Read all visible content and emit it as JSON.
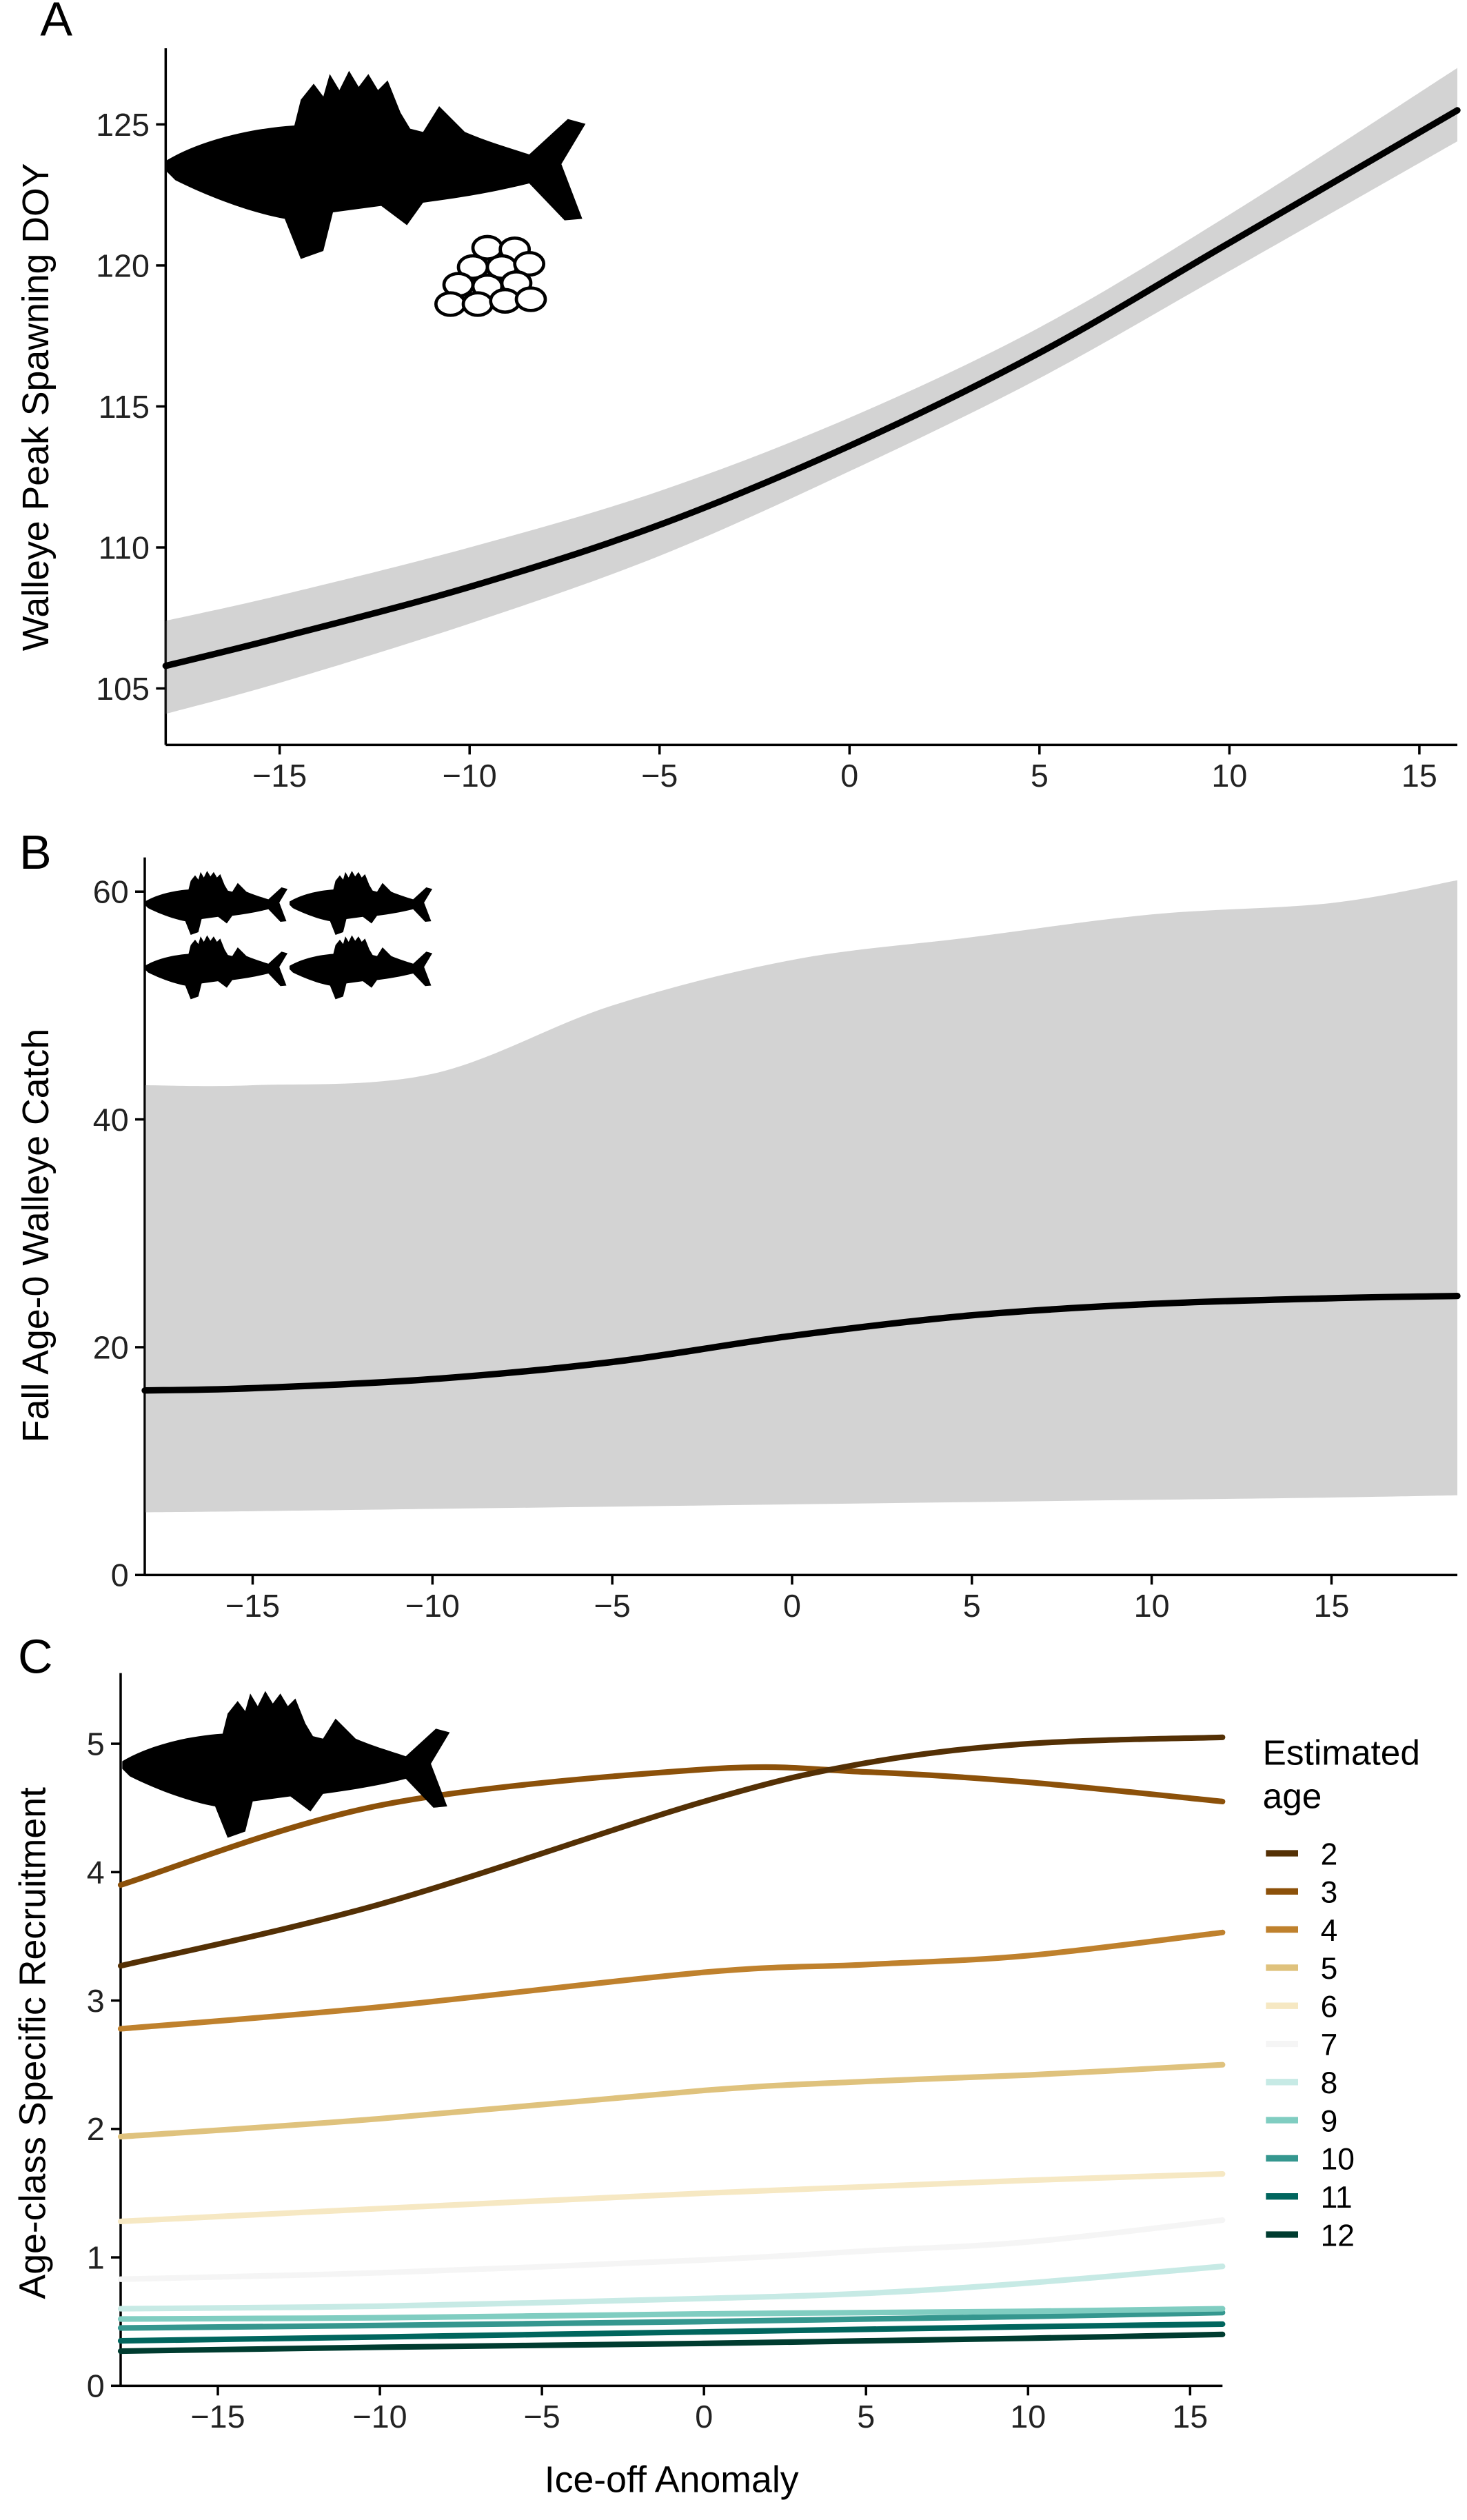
{
  "chart_data": [
    {
      "type": "line",
      "panel_label": "A",
      "y_label": "Walleye Peak Spawning DOY",
      "x": [
        -18,
        -15,
        -10,
        -5,
        0,
        5,
        10,
        16
      ],
      "values": [
        105.8,
        106.8,
        108.6,
        110.8,
        113.6,
        116.9,
        120.8,
        125.5
      ],
      "lower": [
        104.1,
        105.2,
        107.3,
        109.7,
        112.7,
        116.0,
        119.8,
        124.4
      ],
      "upper": [
        107.4,
        108.3,
        110.0,
        112.0,
        114.6,
        117.8,
        121.8,
        127.0
      ],
      "color": "#000000",
      "band_color": "#808080",
      "xlim": [
        -18,
        16
      ],
      "ylim": [
        103,
        127.7
      ],
      "xticks": [
        {
          "value": -15,
          "label": "−15"
        },
        {
          "value": -10,
          "label": "−10"
        },
        {
          "value": -5,
          "label": "−5"
        },
        0,
        5,
        10,
        15
      ],
      "yticks": [
        105,
        110,
        115,
        120,
        125
      ]
    },
    {
      "type": "line",
      "panel_label": "B",
      "y_label": "Fall Age-0 Walleye Catch",
      "x": [
        -18,
        -15,
        -10,
        -5,
        0,
        5,
        10,
        15,
        18.5
      ],
      "values": [
        16.2,
        16.4,
        17.2,
        18.7,
        21,
        22.8,
        23.8,
        24.3,
        24.5
      ],
      "lower": [
        5.5,
        5.6,
        5.8,
        6,
        6.2,
        6.4,
        6.6,
        6.8,
        7
      ],
      "upper": [
        43,
        43,
        44,
        50,
        54,
        56,
        58,
        59,
        61
      ],
      "color": "#000000",
      "band_color": "#808080",
      "xlim": [
        -18,
        18.5
      ],
      "ylim": [
        0,
        63
      ],
      "xticks": [
        {
          "value": -15,
          "label": "−15"
        },
        {
          "value": -10,
          "label": "−10"
        },
        {
          "value": -5,
          "label": "−5"
        },
        0,
        5,
        10,
        15
      ],
      "yticks": [
        0,
        20,
        40,
        60
      ]
    },
    {
      "type": "line",
      "panel_label": "C",
      "y_label": "Age-class Specific Recruitment",
      "x_label": "Ice-off Anomaly",
      "legend_title": "Estimated age",
      "x": [
        -18,
        -10,
        0,
        5,
        10,
        16
      ],
      "series": [
        {
          "name": "2",
          "color": "#543005",
          "values": [
            3.27,
            3.75,
            4.55,
            4.85,
            5.0,
            5.05
          ]
        },
        {
          "name": "3",
          "color": "#8c510a",
          "values": [
            3.9,
            4.52,
            4.8,
            4.78,
            4.7,
            4.55
          ]
        },
        {
          "name": "4",
          "color": "#bf812d",
          "values": [
            2.78,
            2.95,
            3.22,
            3.28,
            3.35,
            3.53
          ]
        },
        {
          "name": "5",
          "color": "#dfc27d",
          "values": [
            1.94,
            2.08,
            2.3,
            2.37,
            2.42,
            2.5
          ]
        },
        {
          "name": "6",
          "color": "#f6e8c3",
          "values": [
            1.28,
            1.38,
            1.5,
            1.55,
            1.6,
            1.65
          ]
        },
        {
          "name": "7",
          "color": "#f5f5f5",
          "values": [
            0.83,
            0.88,
            0.98,
            1.05,
            1.12,
            1.29
          ]
        },
        {
          "name": "8",
          "color": "#c7eae5",
          "values": [
            0.6,
            0.62,
            0.68,
            0.72,
            0.8,
            0.93
          ]
        },
        {
          "name": "9",
          "color": "#80cdc1",
          "values": [
            0.52,
            0.53,
            0.56,
            0.57,
            0.58,
            0.6
          ]
        },
        {
          "name": "10",
          "color": "#35978f",
          "values": [
            0.45,
            0.47,
            0.5,
            0.52,
            0.54,
            0.57
          ]
        },
        {
          "name": "11",
          "color": "#01665e",
          "values": [
            0.35,
            0.38,
            0.42,
            0.44,
            0.46,
            0.48
          ]
        },
        {
          "name": "12",
          "color": "#003c30",
          "values": [
            0.27,
            0.3,
            0.33,
            0.35,
            0.37,
            0.4
          ]
        }
      ],
      "xlim": [
        -18,
        16
      ],
      "ylim": [
        0,
        5.55
      ],
      "xticks": [
        {
          "value": -15,
          "label": "−15"
        },
        {
          "value": -10,
          "label": "−10"
        },
        {
          "value": -5,
          "label": "−5"
        },
        0,
        5,
        10,
        15
      ],
      "yticks": [
        0,
        1,
        2,
        3,
        4,
        5
      ]
    }
  ]
}
